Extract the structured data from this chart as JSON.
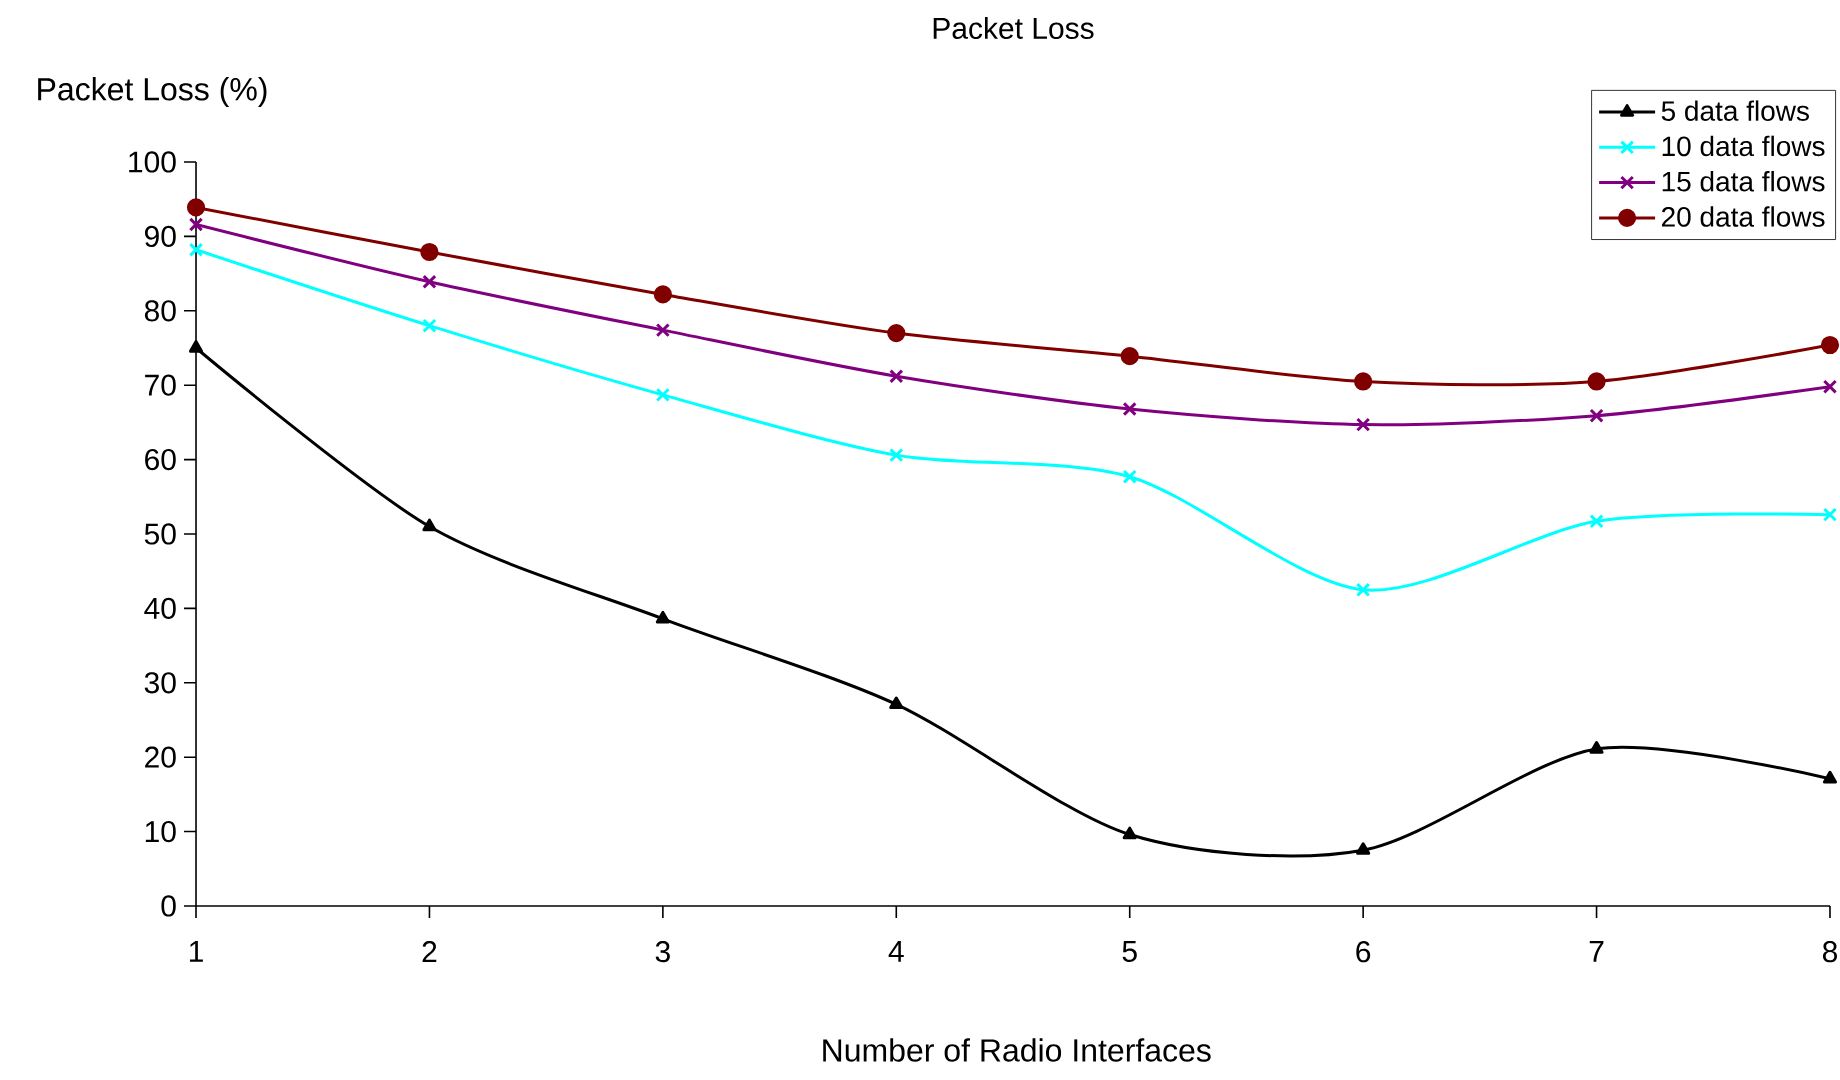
{
  "chart_data": {
    "type": "line",
    "title": "Packet Loss",
    "xlabel": "Number of Radio Interfaces",
    "ylabel": "Packet Loss (%)",
    "x": [
      1,
      2,
      3,
      4,
      5,
      6,
      7,
      8
    ],
    "series": [
      {
        "name": "5 data flows",
        "color": "#000000",
        "marker": "triangle",
        "values": [
          75,
          51,
          38.6,
          27.1,
          9.6,
          7.5,
          21.1,
          17.1
        ]
      },
      {
        "name": "10 data flows",
        "color": "#00ffff",
        "marker": "cross",
        "values": [
          88.2,
          78,
          68.7,
          60.6,
          57.7,
          42.5,
          51.7,
          52.6
        ]
      },
      {
        "name": "15 data flows",
        "color": "#800080",
        "marker": "cross",
        "values": [
          91.6,
          83.9,
          77.4,
          71.2,
          66.8,
          64.7,
          65.9,
          69.8
        ]
      },
      {
        "name": "20 data flows",
        "color": "#800000",
        "marker": "circle",
        "values": [
          93.9,
          87.9,
          82.2,
          77,
          73.9,
          70.5,
          70.5,
          75.4
        ]
      }
    ],
    "xlim": [
      1,
      8
    ],
    "ylim": [
      0,
      100
    ],
    "xticks": [
      1,
      2,
      3,
      4,
      5,
      6,
      7,
      8
    ],
    "yticks": [
      0,
      10,
      20,
      30,
      40,
      50,
      60,
      70,
      80,
      90,
      100
    ],
    "grid": false,
    "legend": "top right",
    "line_style": "solid"
  }
}
